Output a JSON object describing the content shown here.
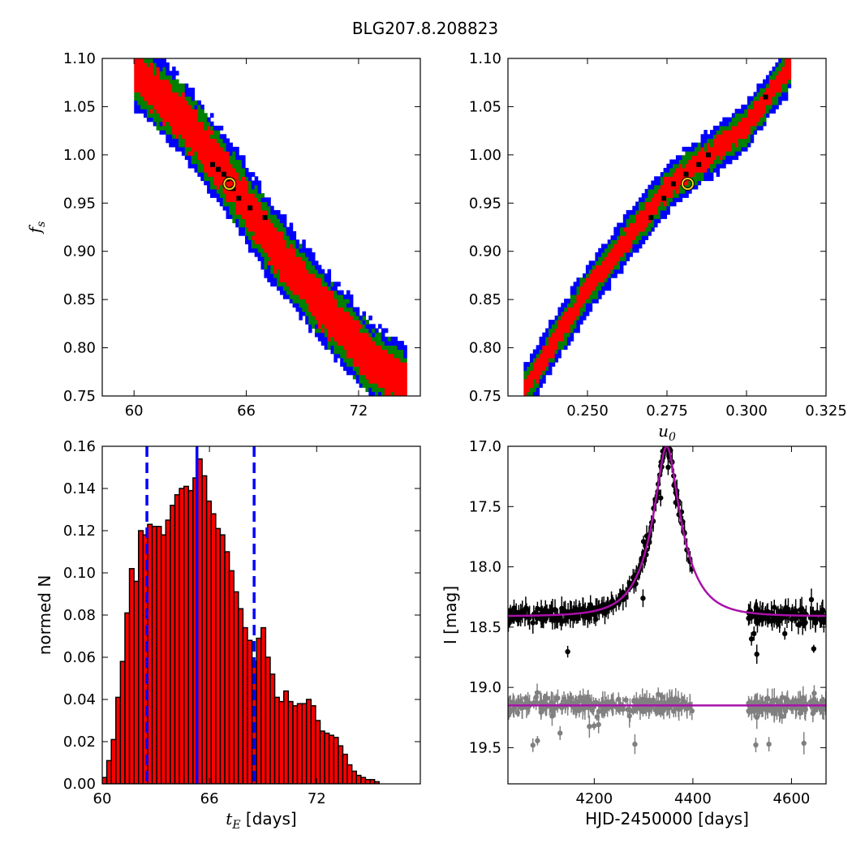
{
  "figure": {
    "title": "BLG207.8.208823"
  },
  "chart_data": [
    {
      "type": "heatmap",
      "panel": "top-left",
      "xlabel": "",
      "ylabel": "f_s",
      "xlim": [
        58.3,
        75.3
      ],
      "ylim": [
        0.75,
        1.1
      ],
      "xticks": [
        60,
        66,
        72
      ],
      "yticks": [
        0.75,
        0.8,
        0.85,
        0.9,
        0.95,
        1.0,
        1.05,
        1.1
      ],
      "ytick_labels": [
        "0.75",
        "0.80",
        "0.85",
        "0.90",
        "0.95",
        "1.00",
        "1.05",
        "1.10"
      ],
      "colors": {
        "outer": "#0000ff",
        "middle": "#008000",
        "inner": "#ff0000",
        "points": "#000000",
        "best_fit": "#f0d020"
      },
      "band_center": [
        [
          60.1,
          1.087
        ],
        [
          62.5,
          1.04
        ],
        [
          65.0,
          0.978
        ],
        [
          67.5,
          0.905
        ],
        [
          70.0,
          0.845
        ],
        [
          72.5,
          0.79
        ],
        [
          74.5,
          0.76
        ]
      ],
      "half_width_fs": {
        "inner": 0.022,
        "middle": 0.032,
        "outer": 0.04
      },
      "black_points": [
        [
          64.2,
          0.99
        ],
        [
          64.5,
          0.985
        ],
        [
          64.8,
          0.98
        ],
        [
          65.0,
          0.975
        ],
        [
          65.3,
          0.965
        ],
        [
          65.6,
          0.955
        ],
        [
          66.2,
          0.945
        ],
        [
          67.0,
          0.935
        ]
      ],
      "best_fit": {
        "x": 65.1,
        "y": 0.97
      }
    },
    {
      "type": "heatmap",
      "panel": "top-right",
      "xlabel": "u_0",
      "ylabel": "",
      "xlim": [
        0.225,
        0.325
      ],
      "ylim": [
        0.75,
        1.1
      ],
      "xticks": [
        0.25,
        0.275,
        0.3,
        0.325
      ],
      "xtick_labels": [
        "0.250",
        "0.275",
        "0.300",
        "0.325"
      ],
      "yticks": [
        0.75,
        0.8,
        0.85,
        0.9,
        0.95,
        1.0,
        1.05,
        1.1
      ],
      "ytick_labels": [
        "0.75",
        "0.80",
        "0.85",
        "0.90",
        "0.95",
        "1.00",
        "1.05",
        "1.10"
      ],
      "colors": {
        "outer": "#0000ff",
        "middle": "#008000",
        "inner": "#ff0000",
        "points": "#000000",
        "best_fit": "#f0d020"
      },
      "band_center": [
        [
          0.2305,
          0.758
        ],
        [
          0.25,
          0.86
        ],
        [
          0.275,
          0.965
        ],
        [
          0.3,
          1.03
        ],
        [
          0.3135,
          1.09
        ]
      ],
      "half_width_fs": {
        "inner": 0.011,
        "middle": 0.018,
        "outer": 0.025
      },
      "black_points": [
        [
          0.27,
          0.935
        ],
        [
          0.274,
          0.955
        ],
        [
          0.277,
          0.97
        ],
        [
          0.281,
          0.98
        ],
        [
          0.285,
          0.99
        ],
        [
          0.288,
          1.0
        ],
        [
          0.306,
          1.06
        ]
      ],
      "best_fit": {
        "x": 0.2815,
        "y": 0.97
      }
    },
    {
      "type": "bar",
      "panel": "bottom-left",
      "xlabel": "t_E [days]",
      "ylabel": "normed N",
      "xlim": [
        60,
        77.8
      ],
      "ylim": [
        0,
        0.16
      ],
      "xticks": [
        60,
        66,
        72
      ],
      "yticks": [
        0.0,
        0.02,
        0.04,
        0.06,
        0.08,
        0.1,
        0.12,
        0.14,
        0.16
      ],
      "ytick_labels": [
        "0.00",
        "0.02",
        "0.04",
        "0.06",
        "0.08",
        "0.10",
        "0.12",
        "0.14",
        "0.16"
      ],
      "bin_start": 60.0,
      "bin_width": 0.254,
      "values": [
        0.003,
        0.011,
        0.021,
        0.041,
        0.058,
        0.081,
        0.102,
        0.096,
        0.12,
        0.118,
        0.123,
        0.122,
        0.122,
        0.118,
        0.125,
        0.132,
        0.137,
        0.14,
        0.141,
        0.139,
        0.145,
        0.154,
        0.146,
        0.134,
        0.128,
        0.121,
        0.118,
        0.11,
        0.101,
        0.091,
        0.083,
        0.074,
        0.068,
        0.058,
        0.069,
        0.074,
        0.06,
        0.052,
        0.041,
        0.039,
        0.044,
        0.039,
        0.037,
        0.038,
        0.038,
        0.04,
        0.037,
        0.03,
        0.025,
        0.024,
        0.023,
        0.022,
        0.018,
        0.014,
        0.009,
        0.006,
        0.004,
        0.003,
        0.002,
        0.002,
        0.001
      ],
      "bar_color": "#ff0000",
      "median": 65.3,
      "confidence_lines": [
        62.5,
        68.5
      ],
      "line_color": "#0000ff"
    },
    {
      "type": "scatter",
      "panel": "bottom-right",
      "xlabel": "HJD-2450000 [days]",
      "ylabel": "I [mag]",
      "xlim": [
        4025,
        4670
      ],
      "ylim": [
        19.8,
        17.0
      ],
      "y_inverted": true,
      "xticks": [
        4200,
        4400,
        4600
      ],
      "yticks": [
        17.0,
        17.5,
        18.0,
        18.5,
        19.0,
        19.5
      ],
      "ytick_labels": [
        "17.0",
        "17.5",
        "18.0",
        "18.5",
        "19.0",
        "19.5"
      ],
      "model": {
        "t0": 4347,
        "u0": 0.281,
        "tE": 65.1,
        "baseline": 18.41,
        "color": "#aa10aa"
      },
      "residual_baseline": 19.15,
      "data_color": "#000000",
      "residual_color": "#808080",
      "seasons": [
        [
          4025,
          4400
        ],
        [
          4510,
          4670
        ]
      ]
    }
  ]
}
